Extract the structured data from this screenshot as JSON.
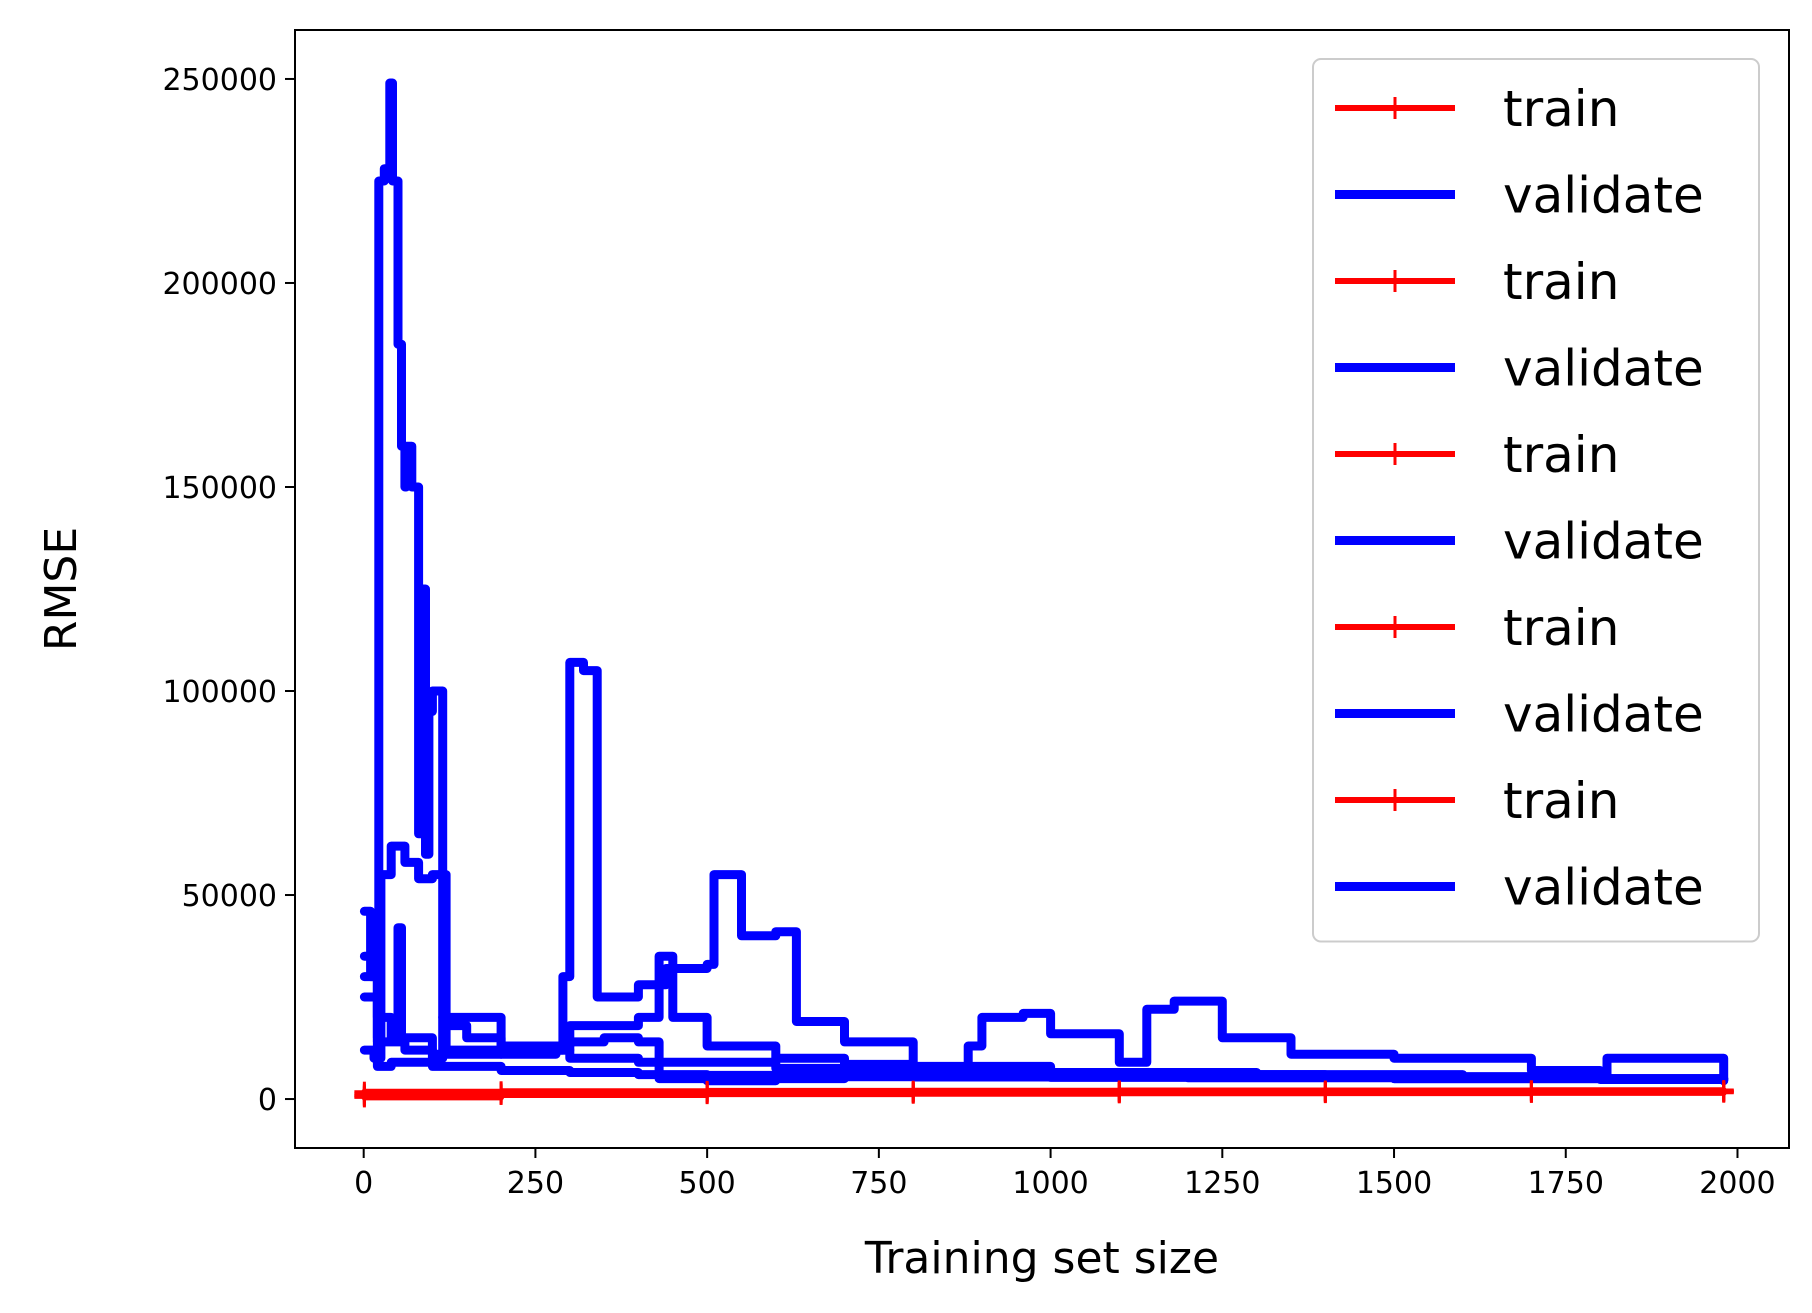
{
  "chart_data": {
    "type": "line",
    "title": "",
    "xlabel": "Training set size",
    "ylabel": "RMSE",
    "xlim": [
      -100,
      2075
    ],
    "ylim": [
      -12000,
      262000
    ],
    "xticks": [
      0,
      250,
      500,
      750,
      1000,
      1250,
      1500,
      1750,
      2000
    ],
    "xtick_labels": [
      "0",
      "250",
      "500",
      "750",
      "1000",
      "1250",
      "1500",
      "1750",
      "2000"
    ],
    "yticks": [
      0,
      50000,
      100000,
      150000,
      200000,
      250000
    ],
    "ytick_labels": [
      "0",
      "50000",
      "100000",
      "150000",
      "200000",
      "250000"
    ],
    "grid": false,
    "legend_position": "top-right",
    "colors": {
      "train": "#ff0000",
      "validate": "#0000ff"
    },
    "series": [
      {
        "name": "train",
        "color": "#ff0000",
        "marker": "+",
        "x": [
          1,
          200,
          500,
          800,
          1100,
          1400,
          1700,
          1980
        ],
        "y": [
          400,
          1000,
          1200,
          1300,
          1400,
          1450,
          1500,
          1550
        ]
      },
      {
        "name": "validate",
        "color": "#0000ff",
        "x": [
          1,
          10,
          20,
          22,
          30,
          38,
          42,
          50,
          55,
          60,
          62,
          70,
          80,
          85,
          90,
          95,
          100,
          110,
          115,
          120,
          150,
          200,
          300,
          400,
          600,
          800,
          1000,
          1300,
          1600,
          1800,
          1980
        ],
        "y": [
          46000,
          30000,
          15000,
          225000,
          228000,
          249000,
          225000,
          185000,
          160000,
          150000,
          160000,
          150000,
          65000,
          125000,
          60000,
          95000,
          100000,
          100000,
          20000,
          18000,
          15000,
          12000,
          10000,
          9000,
          7500,
          7000,
          6500,
          6000,
          5500,
          5000,
          4500
        ]
      },
      {
        "name": "train",
        "color": "#ff0000",
        "marker": "+",
        "x": [
          1,
          200,
          500,
          800,
          1100,
          1400,
          1700,
          1980
        ],
        "y": [
          900,
          1200,
          1400,
          1500,
          1550,
          1600,
          1650,
          1700
        ]
      },
      {
        "name": "validate",
        "color": "#0000ff",
        "x": [
          1,
          15,
          25,
          40,
          60,
          80,
          100,
          110,
          120,
          200,
          280,
          290,
          300,
          320,
          340,
          400,
          440,
          500,
          510,
          550,
          600,
          630,
          700,
          800,
          1000,
          1200,
          1500,
          1800,
          1980
        ],
        "y": [
          12000,
          10000,
          55000,
          62000,
          58000,
          54000,
          55000,
          55000,
          12000,
          11000,
          12000,
          30000,
          107000,
          105000,
          25000,
          28000,
          32000,
          33000,
          55000,
          40000,
          41000,
          19000,
          14000,
          8000,
          6000,
          5500,
          5000,
          4800,
          4500
        ]
      },
      {
        "name": "train",
        "color": "#ff0000",
        "marker": "+",
        "x": [
          1,
          200,
          500,
          800,
          1100,
          1400,
          1700,
          1980
        ],
        "y": [
          1300,
          1600,
          1700,
          1800,
          1850,
          1900,
          1950,
          1990
        ]
      },
      {
        "name": "validate",
        "color": "#0000ff",
        "x": [
          1,
          20,
          40,
          50,
          55,
          60,
          100,
          115,
          120,
          200,
          300,
          400,
          430,
          450,
          500,
          600,
          700,
          800,
          880,
          900,
          960,
          1000,
          1100,
          1140,
          1180,
          1250,
          1350,
          1500,
          1700,
          1800,
          1810,
          1980
        ],
        "y": [
          35000,
          20000,
          15000,
          42000,
          15000,
          15000,
          10000,
          20000,
          20000,
          13000,
          18000,
          20000,
          35000,
          20000,
          13000,
          10000,
          8500,
          7000,
          13000,
          20000,
          21000,
          16000,
          9000,
          22000,
          24000,
          15000,
          11000,
          10000,
          7000,
          6000,
          10000,
          5000
        ]
      },
      {
        "name": "train",
        "color": "#ff0000",
        "marker": "+",
        "x": [
          1,
          200,
          500,
          800,
          1100,
          1400,
          1700,
          1980
        ],
        "y": [
          700,
          1400,
          1600,
          1700,
          1750,
          1800,
          1850,
          1900
        ]
      },
      {
        "name": "validate",
        "color": "#0000ff",
        "x": [
          1,
          20,
          40,
          100,
          200,
          300,
          400,
          500,
          600,
          800,
          1000,
          1200,
          1500,
          1800,
          1980
        ],
        "y": [
          25000,
          8000,
          9000,
          8000,
          7000,
          6500,
          6000,
          5800,
          5500,
          5400,
          5300,
          5200,
          5000,
          4900,
          4800
        ]
      },
      {
        "name": "train",
        "color": "#ff0000",
        "marker": "+",
        "x": [
          1,
          200,
          500,
          800,
          1100,
          1400,
          1700,
          1980
        ],
        "y": [
          1800,
          1900,
          2000,
          2050,
          2100,
          2100,
          2150,
          2200
        ]
      },
      {
        "name": "validate",
        "color": "#0000ff",
        "x": [
          1,
          20,
          60,
          100,
          200,
          300,
          350,
          400,
          430,
          500,
          600,
          700,
          800,
          900,
          1000,
          1200,
          1400,
          1600,
          1800,
          1980
        ],
        "y": [
          30000,
          14000,
          12000,
          11000,
          12000,
          14000,
          15000,
          14000,
          5000,
          4500,
          5000,
          5500,
          5500,
          5800,
          6000,
          6000,
          5500,
          5200,
          5000,
          5000
        ]
      }
    ]
  }
}
